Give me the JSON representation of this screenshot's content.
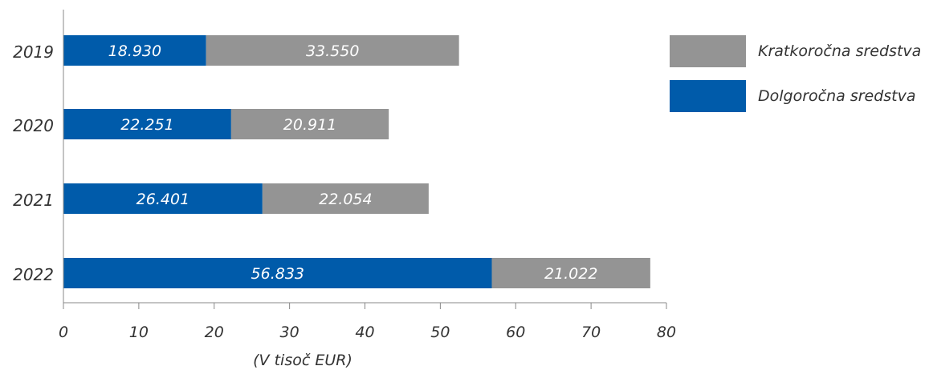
{
  "chart_data": {
    "type": "bar",
    "orientation": "horizontal",
    "stacked": true,
    "categories": [
      "2019",
      "2020",
      "2021",
      "2022"
    ],
    "series": [
      {
        "name": "Dolgoročna sredstva",
        "values": [
          18930,
          22251,
          26401,
          56833
        ],
        "labels": [
          "18.930",
          "22.251",
          "26.401",
          "56.833"
        ],
        "color": "#005baa"
      },
      {
        "name": "Kratkoročna sredstva",
        "values": [
          33550,
          20911,
          22054,
          21022
        ],
        "labels": [
          "33.550",
          "20.911",
          "22.054",
          "21.022"
        ],
        "color": "#949494"
      }
    ],
    "xlabel": "(V tisoč EUR)",
    "xticks": [
      "0",
      "10",
      "20",
      "30",
      "40",
      "50",
      "60",
      "70",
      "80"
    ],
    "xlim": [
      0,
      80000
    ],
    "legend_position": "right",
    "legend": [
      {
        "label": "Kratkoročna sredstva",
        "color": "#949494"
      },
      {
        "label": "Dolgoročna sredstva",
        "color": "#005baa"
      }
    ],
    "grid": false
  }
}
